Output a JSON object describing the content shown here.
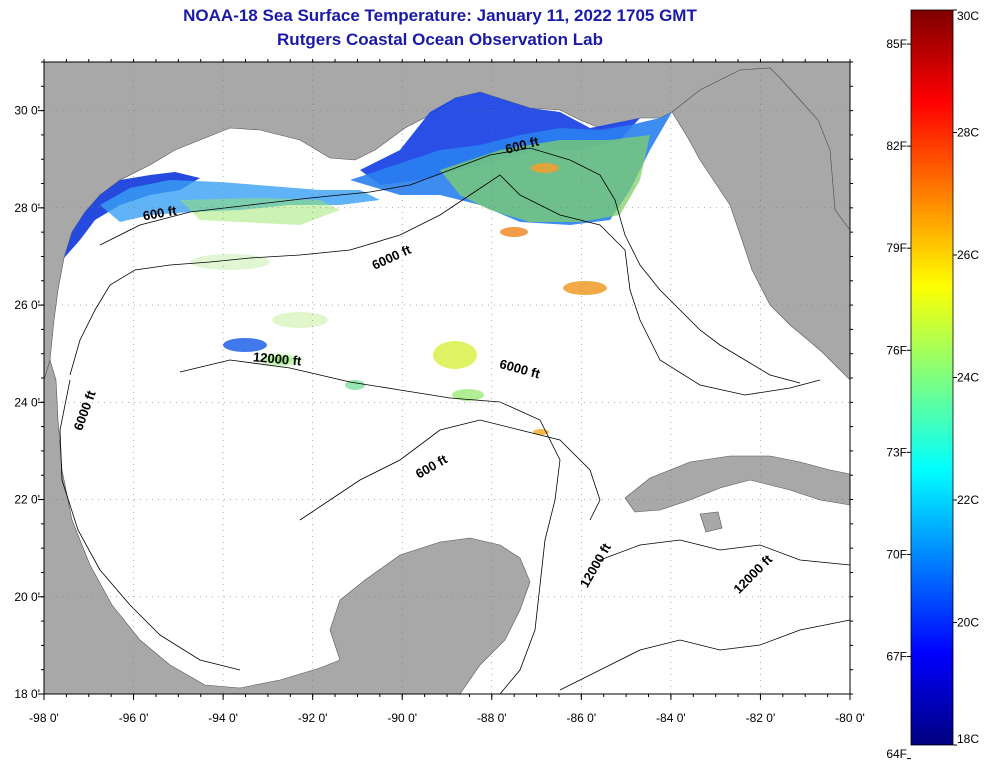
{
  "header": {
    "title": "NOAA-18 Sea Surface Temperature:  January 11, 2022 1705 GMT",
    "subtitle": "Rutgers Coastal Ocean Observation Lab"
  },
  "map": {
    "lon_range": [
      -98,
      -80
    ],
    "lat_range": [
      18,
      31
    ],
    "lon_ticks": [
      -98,
      -96,
      -94,
      -92,
      -90,
      -88,
      -86,
      -84,
      -82,
      -80
    ],
    "lat_ticks": [
      18,
      20,
      22,
      24,
      26,
      28,
      30
    ],
    "lon_tick_labels": [
      "-98 0'",
      "-96 0'",
      "-94 0'",
      "-92 0'",
      "-90 0'",
      "-88 0'",
      "-86 0'",
      "-84 0'",
      "-82 0'",
      "-80 0'"
    ],
    "lat_tick_labels": [
      "18 0'",
      "20 0'",
      "22 0'",
      "24 0'",
      "26 0'",
      "28 0'",
      "30 0'"
    ],
    "land_color": "#a8a8a8",
    "ocean_color": "#ffffff",
    "contour_labels": [
      {
        "text": "600 ft",
        "lon": -87.3,
        "lat": 29.2
      },
      {
        "text": "600 ft",
        "lon": -95.4,
        "lat": 27.8
      },
      {
        "text": "6000 ft",
        "lon": -90.2,
        "lat": 26.9
      },
      {
        "text": "12000 ft",
        "lon": -92.8,
        "lat": 24.8
      },
      {
        "text": "6000 ft",
        "lon": -97.0,
        "lat": 23.8
      },
      {
        "text": "6000 ft",
        "lon": -87.4,
        "lat": 24.6
      },
      {
        "text": "600 ft",
        "lon": -89.3,
        "lat": 22.6
      },
      {
        "text": "12000 ft",
        "lon": -85.6,
        "lat": 20.6
      },
      {
        "text": "12000 ft",
        "lon": -82.1,
        "lat": 20.4
      }
    ]
  },
  "colorbar": {
    "min_c": 18,
    "max_c": 30,
    "celsius_labels": [
      "18C",
      "20C",
      "22C",
      "24C",
      "26C",
      "28C",
      "30C"
    ],
    "fahrenheit_labels": [
      "64F",
      "67F",
      "70F",
      "73F",
      "76F",
      "79F",
      "82F",
      "85F"
    ],
    "colors": [
      "#00007f",
      "#0000ff",
      "#007fff",
      "#00ffff",
      "#7fff7f",
      "#ffff00",
      "#ff7f00",
      "#ff0000",
      "#7f0000"
    ]
  }
}
